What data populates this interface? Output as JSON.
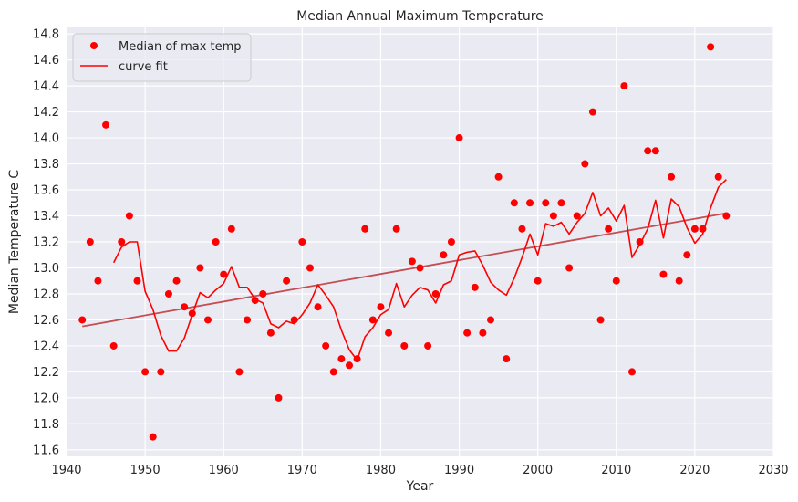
{
  "chart_data": {
    "type": "scatter",
    "title": "Median Annual Maximum Temperature",
    "xlabel": "Year",
    "ylabel": "Median Temperature C",
    "xlim": [
      1940,
      2030
    ],
    "ylim": [
      11.55,
      14.85
    ],
    "xticks": [
      1940,
      1950,
      1960,
      1970,
      1980,
      1990,
      2000,
      2010,
      2020,
      2030
    ],
    "yticks": [
      11.6,
      11.8,
      12.0,
      12.2,
      12.4,
      12.6,
      12.8,
      13.0,
      13.2,
      13.4,
      13.6,
      13.8,
      14.0,
      14.2,
      14.4,
      14.6,
      14.8
    ],
    "grid": true,
    "legend_position": "top-left",
    "colors": {
      "background": "#eaeaf2",
      "grid": "#ffffff",
      "points": "#ff0000",
      "curve": "#ff0000",
      "trend": "#c44e52"
    },
    "series": [
      {
        "name": "Median of max temp",
        "kind": "scatter",
        "x": [
          1942,
          1943,
          1944,
          1945,
          1946,
          1947,
          1948,
          1949,
          1950,
          1951,
          1952,
          1953,
          1954,
          1955,
          1956,
          1957,
          1958,
          1959,
          1960,
          1961,
          1962,
          1963,
          1964,
          1965,
          1966,
          1967,
          1968,
          1969,
          1970,
          1971,
          1972,
          1973,
          1974,
          1975,
          1976,
          1977,
          1978,
          1979,
          1980,
          1981,
          1982,
          1983,
          1984,
          1985,
          1986,
          1987,
          1988,
          1989,
          1990,
          1991,
          1992,
          1993,
          1994,
          1995,
          1996,
          1997,
          1998,
          1999,
          2000,
          2001,
          2002,
          2003,
          2004,
          2005,
          2006,
          2007,
          2008,
          2009,
          2010,
          2011,
          2012,
          2013,
          2014,
          2015,
          2016,
          2017,
          2018,
          2019,
          2020,
          2021,
          2022,
          2023,
          2024
        ],
        "y": [
          12.6,
          13.2,
          12.9,
          14.1,
          12.4,
          13.2,
          13.4,
          12.9,
          12.2,
          11.7,
          12.2,
          12.8,
          12.9,
          12.7,
          12.65,
          13.0,
          12.6,
          13.2,
          12.95,
          13.3,
          12.2,
          12.6,
          12.75,
          12.8,
          12.5,
          12.0,
          12.9,
          12.6,
          13.2,
          13.0,
          12.7,
          12.4,
          12.2,
          12.3,
          12.25,
          12.3,
          13.3,
          12.6,
          12.7,
          12.5,
          13.3,
          12.4,
          13.05,
          13.0,
          12.4,
          12.8,
          13.1,
          13.2,
          14.0,
          12.5,
          12.85,
          12.5,
          12.6,
          13.7,
          12.3,
          13.5,
          13.3,
          13.5,
          12.9,
          13.5,
          13.4,
          13.5,
          13.0,
          13.4,
          13.8,
          14.2,
          12.6,
          13.3,
          12.9,
          14.4,
          12.2,
          13.2,
          13.9,
          13.9,
          12.95,
          13.7,
          12.9,
          13.1,
          13.3,
          13.3,
          14.7,
          13.7,
          13.4
        ]
      },
      {
        "name": "curve fit",
        "kind": "line",
        "x": [
          1946,
          1947,
          1948,
          1949,
          1950,
          1951,
          1952,
          1953,
          1954,
          1955,
          1956,
          1957,
          1958,
          1959,
          1960,
          1961,
          1962,
          1963,
          1964,
          1965,
          1966,
          1967,
          1968,
          1969,
          1970,
          1971,
          1972,
          1973,
          1974,
          1975,
          1976,
          1977,
          1978,
          1979,
          1980,
          1981,
          1982,
          1983,
          1984,
          1985,
          1986,
          1987,
          1988,
          1989,
          1990,
          1991,
          1992,
          1993,
          1994,
          1995,
          1996,
          1997,
          1998,
          1999,
          2000,
          2001,
          2002,
          2003,
          2004,
          2005,
          2006,
          2007,
          2008,
          2009,
          2010,
          2011,
          2012,
          2013,
          2014,
          2015,
          2016,
          2017,
          2018,
          2019,
          2020,
          2021,
          2022,
          2023,
          2024
        ],
        "y": [
          13.04,
          13.16,
          13.2,
          13.2,
          12.82,
          12.68,
          12.48,
          12.36,
          12.36,
          12.46,
          12.64,
          12.81,
          12.77,
          12.83,
          12.88,
          13.01,
          12.85,
          12.85,
          12.76,
          12.73,
          12.57,
          12.54,
          12.59,
          12.57,
          12.64,
          12.73,
          12.87,
          12.79,
          12.7,
          12.52,
          12.37,
          12.29,
          12.47,
          12.54,
          12.64,
          12.68,
          12.88,
          12.7,
          12.79,
          12.85,
          12.83,
          12.73,
          12.87,
          12.9,
          13.1,
          13.12,
          13.13,
          13.02,
          12.89,
          12.83,
          12.79,
          12.92,
          13.08,
          13.26,
          13.1,
          13.34,
          13.32,
          13.35,
          13.26,
          13.35,
          13.42,
          13.58,
          13.4,
          13.46,
          13.36,
          13.48,
          13.08,
          13.18,
          13.3,
          13.52,
          13.23,
          13.53,
          13.47,
          13.31,
          13.19,
          13.26,
          13.46,
          13.62,
          13.68
        ]
      },
      {
        "name": "trend",
        "kind": "line",
        "x": [
          1942,
          2024
        ],
        "y": [
          12.55,
          13.42
        ]
      }
    ]
  }
}
